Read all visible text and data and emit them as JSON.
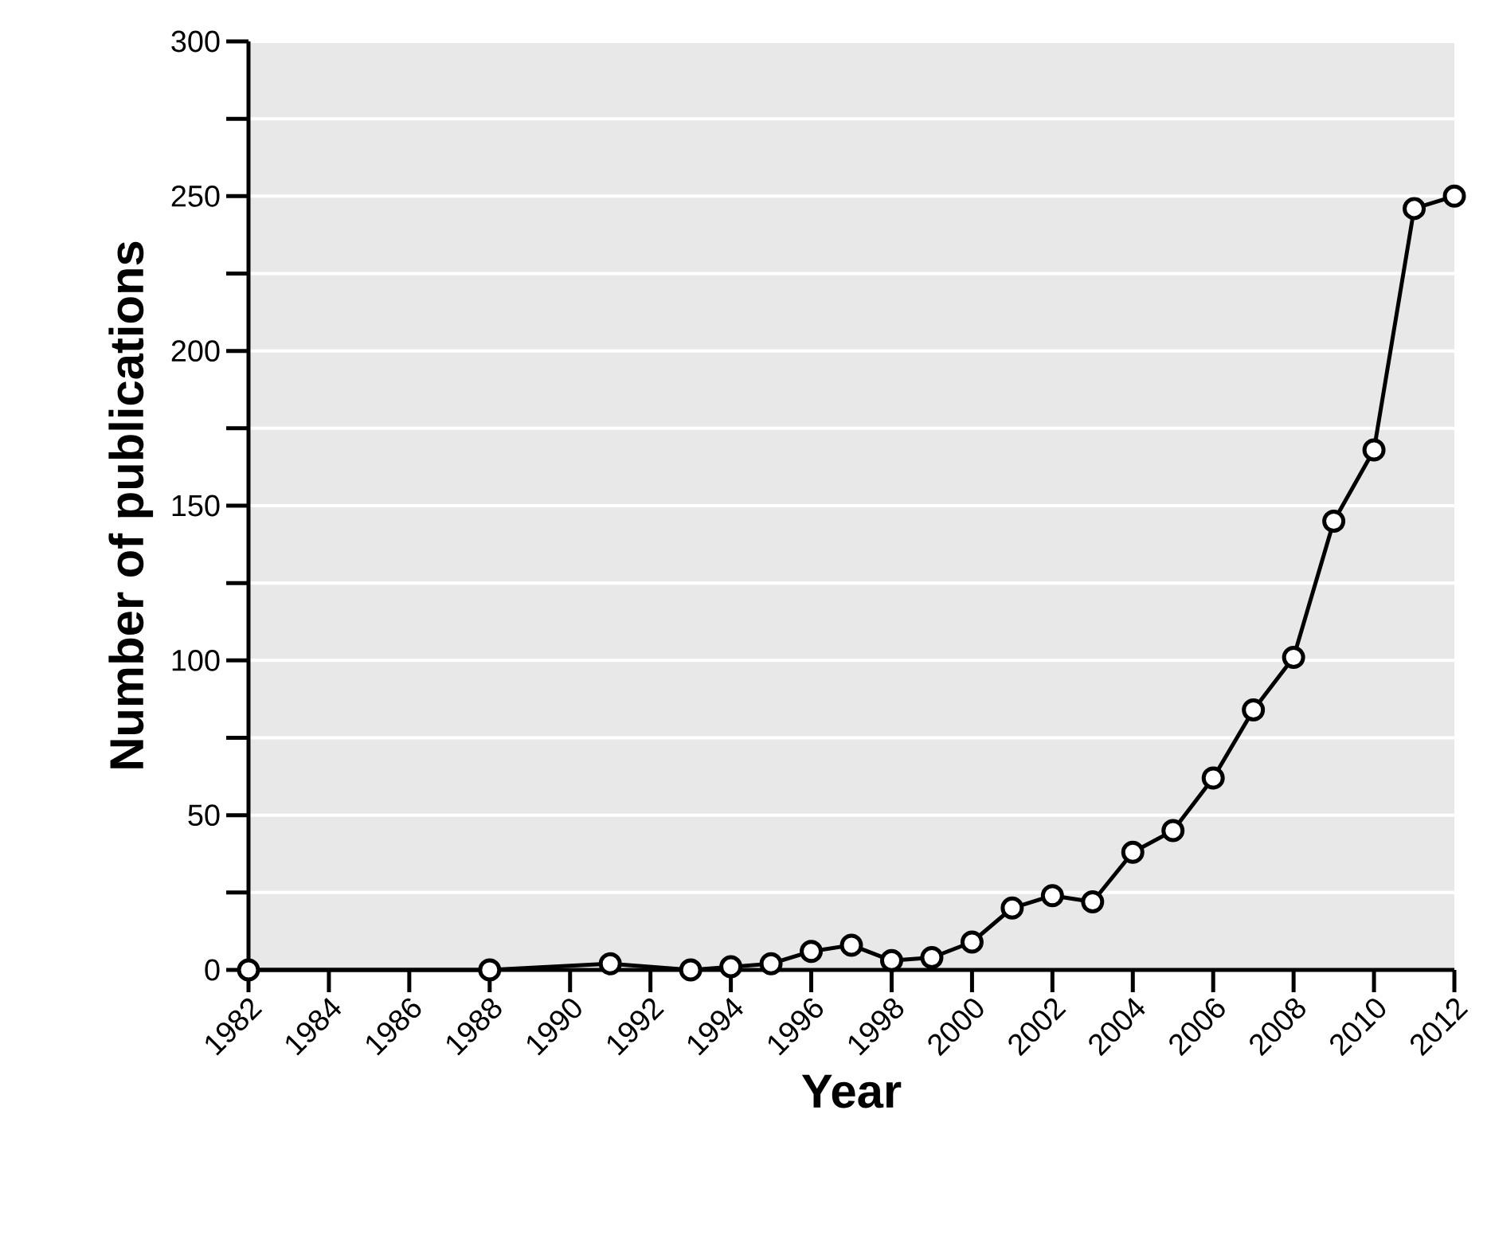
{
  "chart_data": {
    "type": "line",
    "xlabel": "Year",
    "ylabel": "Number of publications",
    "x": [
      1982,
      1988,
      1991,
      1993,
      1994,
      1995,
      1996,
      1997,
      1998,
      1999,
      2000,
      2001,
      2002,
      2003,
      2004,
      2005,
      2006,
      2007,
      2008,
      2009,
      2010,
      2011,
      2012
    ],
    "values": [
      0,
      0,
      2,
      0,
      1,
      2,
      6,
      8,
      3,
      4,
      9,
      20,
      24,
      22,
      38,
      45,
      62,
      84,
      101,
      145,
      168,
      246,
      250
    ],
    "color": "#000000",
    "xlim": [
      1982,
      2012
    ],
    "xticks": [
      1982,
      1984,
      1986,
      1988,
      1990,
      1992,
      1994,
      1996,
      1998,
      2000,
      2002,
      2004,
      2006,
      2008,
      2010,
      2012
    ],
    "ylim": [
      0,
      300
    ],
    "yticks": [
      0,
      {
        "value": 25,
        "label": null
      },
      50,
      {
        "value": 75,
        "label": null
      },
      100,
      {
        "value": 125,
        "label": null
      },
      150,
      {
        "value": 175,
        "label": null
      },
      200,
      {
        "value": 225,
        "label": null
      },
      250,
      {
        "value": 275,
        "label": null
      },
      300
    ],
    "grid": "y",
    "marker": "circle",
    "line_style": "solid"
  }
}
